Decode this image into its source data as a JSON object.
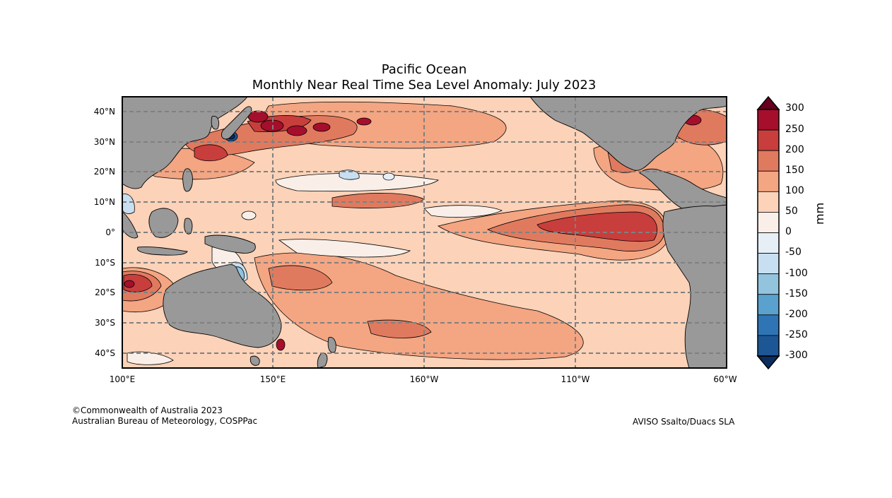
{
  "title": {
    "line1": "Pacific Ocean",
    "line2": "Monthly Near Real Time Sea Level Anomaly: July 2023"
  },
  "map": {
    "lat_labels": [
      "40°N",
      "30°N",
      "20°N",
      "10°N",
      "0°",
      "10°S",
      "20°S",
      "30°S",
      "40°S"
    ],
    "lon_labels": [
      "100°E",
      "150°E",
      "160°W",
      "110°W",
      "60°W"
    ],
    "land_color": "#999999",
    "grid_color": "#808080"
  },
  "colorbar": {
    "units": "mm",
    "levels": [
      "300",
      "250",
      "200",
      "150",
      "100",
      "50",
      "0",
      "-50",
      "-100",
      "-150",
      "-200",
      "-250",
      "-300"
    ],
    "colors": [
      "#67001f",
      "#a50f2c",
      "#c83e3c",
      "#e07a5f",
      "#f4a582",
      "#fcd2b8",
      "#f9efe8",
      "#e6eff5",
      "#c7dff0",
      "#93c4de",
      "#5aa1cd",
      "#2f75b5",
      "#1c5694",
      "#0a2c5f"
    ]
  },
  "credits": {
    "copyright": "©Commonwealth of Australia 2023",
    "org": "Australian Bureau of Meteorology, COSPPac",
    "source": "AVISO Ssalto/Duacs SLA"
  }
}
